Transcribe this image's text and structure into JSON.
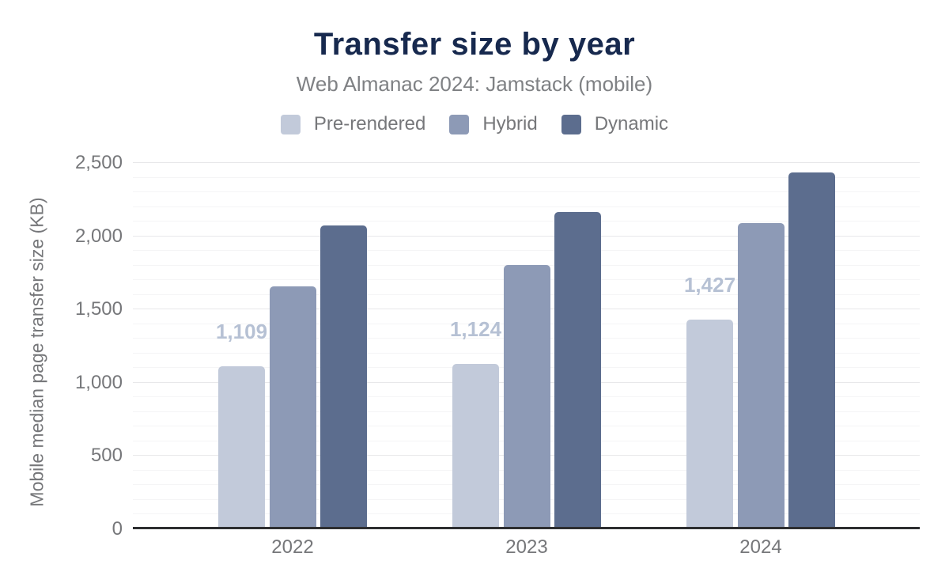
{
  "figure": {
    "title": "Transfer size by year",
    "subtitle": "Web Almanac 2024: Jamstack (mobile)"
  },
  "legend": {
    "position": "top",
    "items": [
      {
        "label": "Pre-rendered",
        "color": "#c2cada"
      },
      {
        "label": "Hybrid",
        "color": "#8d9ab6"
      },
      {
        "label": "Dynamic",
        "color": "#5c6d8e"
      }
    ]
  },
  "chart_data": {
    "type": "bar",
    "title": "Transfer size by year",
    "subtitle": "Web Almanac 2024: Jamstack (mobile)",
    "categories": [
      "2022",
      "2023",
      "2024"
    ],
    "series": [
      {
        "name": "Pre-rendered",
        "color": "#c2cada",
        "values": [
          1109,
          1124,
          1427
        ],
        "data_labels": [
          "1,109",
          "1,124",
          "1,427"
        ]
      },
      {
        "name": "Hybrid",
        "color": "#8d9ab6",
        "values": [
          1650,
          1800,
          2085
        ],
        "data_labels": null
      },
      {
        "name": "Dynamic",
        "color": "#5c6d8e",
        "values": [
          2070,
          2160,
          2430
        ],
        "data_labels": null
      }
    ],
    "xlabel": "",
    "ylabel": "Mobile median page transfer size (KB)",
    "ylim": [
      0,
      2500
    ],
    "yticks": [
      {
        "value": 0,
        "label": "0"
      },
      {
        "value": 500,
        "label": "500"
      },
      {
        "value": 1000,
        "label": "1,000"
      },
      {
        "value": 1500,
        "label": "1,500"
      },
      {
        "value": 2000,
        "label": "2,000"
      },
      {
        "value": 2500,
        "label": "2,500"
      }
    ],
    "grid": true,
    "major_gridline_step": 500,
    "minor_gridline_step": 100,
    "legend_position": "top",
    "data_label_color": "#b6c1d4",
    "axis_line_color": "#2d2e30",
    "title_color": "#17294e",
    "text_color": "#76777a"
  }
}
